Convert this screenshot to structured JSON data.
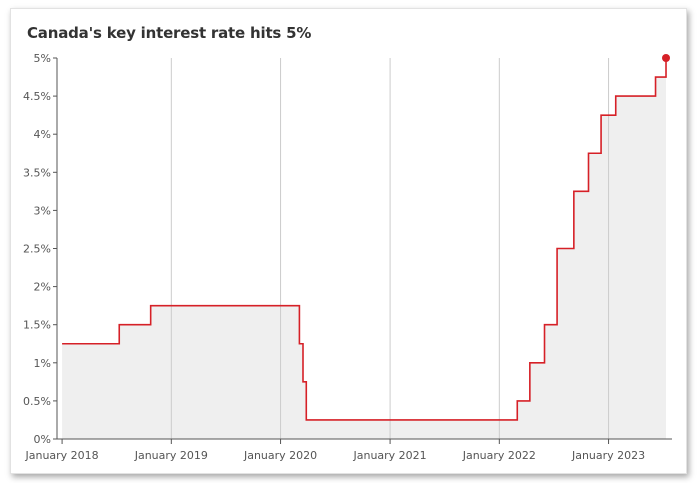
{
  "chart_data": {
    "type": "line",
    "title": "Canada's key interest rate hits 5%",
    "xlabel": "",
    "ylabel": "",
    "x_tick_labels": [
      "January 2018",
      "January 2019",
      "January 2020",
      "January 2021",
      "January 2022",
      "January 2023"
    ],
    "y_tick_labels": [
      "0%",
      "0.5%",
      "1%",
      "1.5%",
      "2%",
      "2.5%",
      "3%",
      "3.5%",
      "4%",
      "4.5%",
      "5%"
    ],
    "ylim": [
      0,
      5
    ],
    "xlim": [
      "2017-12-15",
      "2023-08-01"
    ],
    "grid": "vertical",
    "line_shape": "step",
    "fill_area": true,
    "end_marker": true,
    "series": [
      {
        "points": [
          {
            "date": "2018-01-01",
            "value": 1.25
          },
          {
            "date": "2018-07-11",
            "value": 1.5
          },
          {
            "date": "2018-10-24",
            "value": 1.75
          },
          {
            "date": "2020-03-04",
            "value": 1.25
          },
          {
            "date": "2020-03-16",
            "value": 0.75
          },
          {
            "date": "2020-03-27",
            "value": 0.25
          },
          {
            "date": "2022-03-02",
            "value": 0.5
          },
          {
            "date": "2022-04-13",
            "value": 1.0
          },
          {
            "date": "2022-06-01",
            "value": 1.5
          },
          {
            "date": "2022-07-13",
            "value": 2.5
          },
          {
            "date": "2022-09-07",
            "value": 3.25
          },
          {
            "date": "2022-10-26",
            "value": 3.75
          },
          {
            "date": "2022-12-07",
            "value": 4.25
          },
          {
            "date": "2023-01-25",
            "value": 4.5
          },
          {
            "date": "2023-06-07",
            "value": 4.75
          },
          {
            "date": "2023-07-12",
            "value": 5.0
          }
        ]
      }
    ],
    "colors": {
      "line": "#d62027",
      "fill": "#efefef",
      "grid": "#cccccc",
      "axis": "#555555"
    }
  }
}
